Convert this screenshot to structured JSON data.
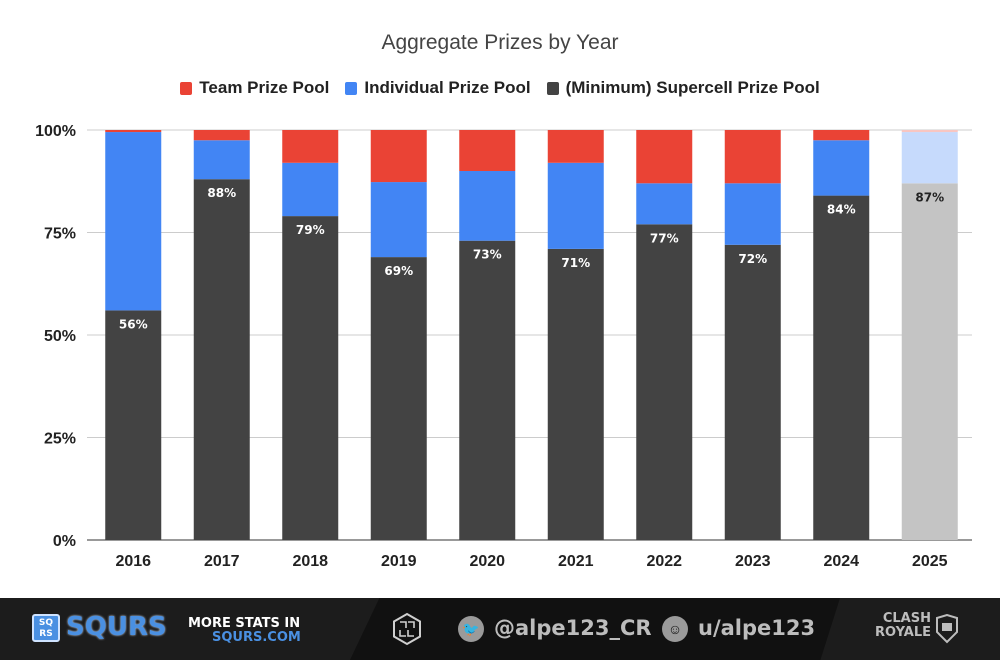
{
  "chart_data": {
    "type": "bar",
    "stacked": "percent",
    "title": "Aggregate Prizes by Year",
    "xlabel": "",
    "ylabel": "",
    "ylim": [
      0,
      100
    ],
    "y_ticks": [
      "0%",
      "25%",
      "50%",
      "75%",
      "100%"
    ],
    "y_tick_values": [
      0,
      25,
      50,
      75,
      100
    ],
    "grid": true,
    "legend_position": "top",
    "categories": [
      "2016",
      "2017",
      "2018",
      "2019",
      "2020",
      "2021",
      "2022",
      "2023",
      "2024",
      "2025"
    ],
    "series": [
      {
        "name": "(Minimum) Supercell Prize Pool",
        "color": "#434343",
        "values": [
          56,
          88,
          79,
          69,
          73,
          71,
          77,
          72,
          84,
          87
        ]
      },
      {
        "name": "Individual Prize Pool",
        "color": "#4285f4",
        "values": [
          43.5,
          9.5,
          13,
          18.3,
          17,
          21,
          10,
          15,
          13.5,
          12.5
        ]
      },
      {
        "name": "Team Prize Pool",
        "color": "#ea4335",
        "values": [
          0.5,
          2.5,
          8,
          12.7,
          10,
          8,
          13,
          13,
          2.5,
          0.5
        ]
      }
    ],
    "data_labels": [
      "56%",
      "88%",
      "79%",
      "69%",
      "73%",
      "71%",
      "77%",
      "72%",
      "84%",
      "87%"
    ],
    "faded_categories": [
      "2025"
    ],
    "faded_colors": {
      "(Minimum) Supercell Prize Pool": "#c4c4c4",
      "Individual Prize Pool": "#c6dafc",
      "Team Prize Pool": "#f8c6c2"
    }
  },
  "legend": [
    {
      "label": "Team Prize Pool",
      "color": "#ea4335"
    },
    {
      "label": "Individual Prize Pool",
      "color": "#4285f4"
    },
    {
      "label": "(Minimum) Supercell Prize Pool",
      "color": "#434343"
    }
  ],
  "footer": {
    "brand_box": "SQ RS",
    "brand": "SQURS",
    "more_line1": "MORE STATS IN",
    "more_line2": "SQURS.COM",
    "twitter_handle": "@alpe123_CR",
    "reddit_handle": "u/alpe123",
    "game_logo_line1": "CLASH",
    "game_logo_line2": "ROYALE"
  }
}
